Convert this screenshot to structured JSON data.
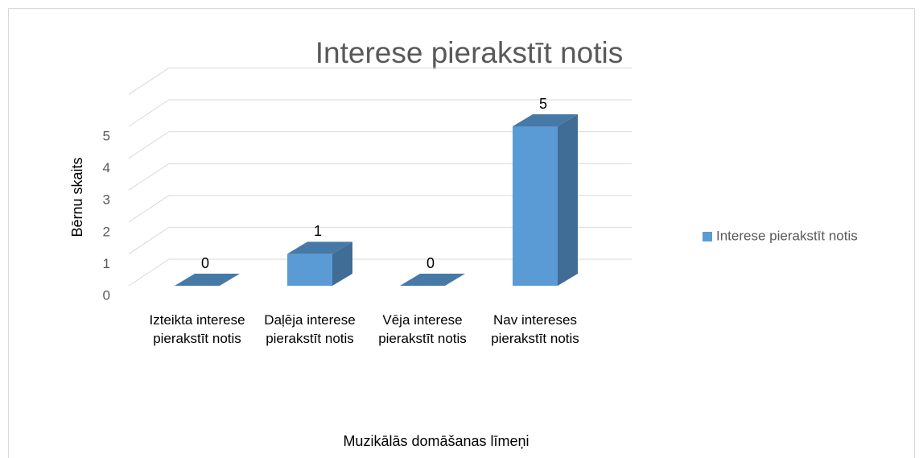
{
  "chart_data": {
    "type": "bar3d",
    "title": "Interese pierakstīt notis",
    "categories": [
      "Izteikta interese pierakstīt notis",
      "Daļēja interese pierakstīt notis",
      "Vēja interese pierakstīt notis",
      "Nav intereses pierakstīt notis"
    ],
    "series": [
      {
        "name": "Interese pierakstīt notis",
        "color": "#5b9bd5",
        "values": [
          0,
          1,
          0,
          5
        ]
      }
    ],
    "ylim": [
      0,
      6
    ],
    "yticks": [
      0,
      1,
      2,
      3,
      4,
      5
    ],
    "grid": true,
    "y_label": "Bērnu skaits",
    "x_label": "Muzikālās domāšanas līmeņi",
    "legend": "right"
  }
}
